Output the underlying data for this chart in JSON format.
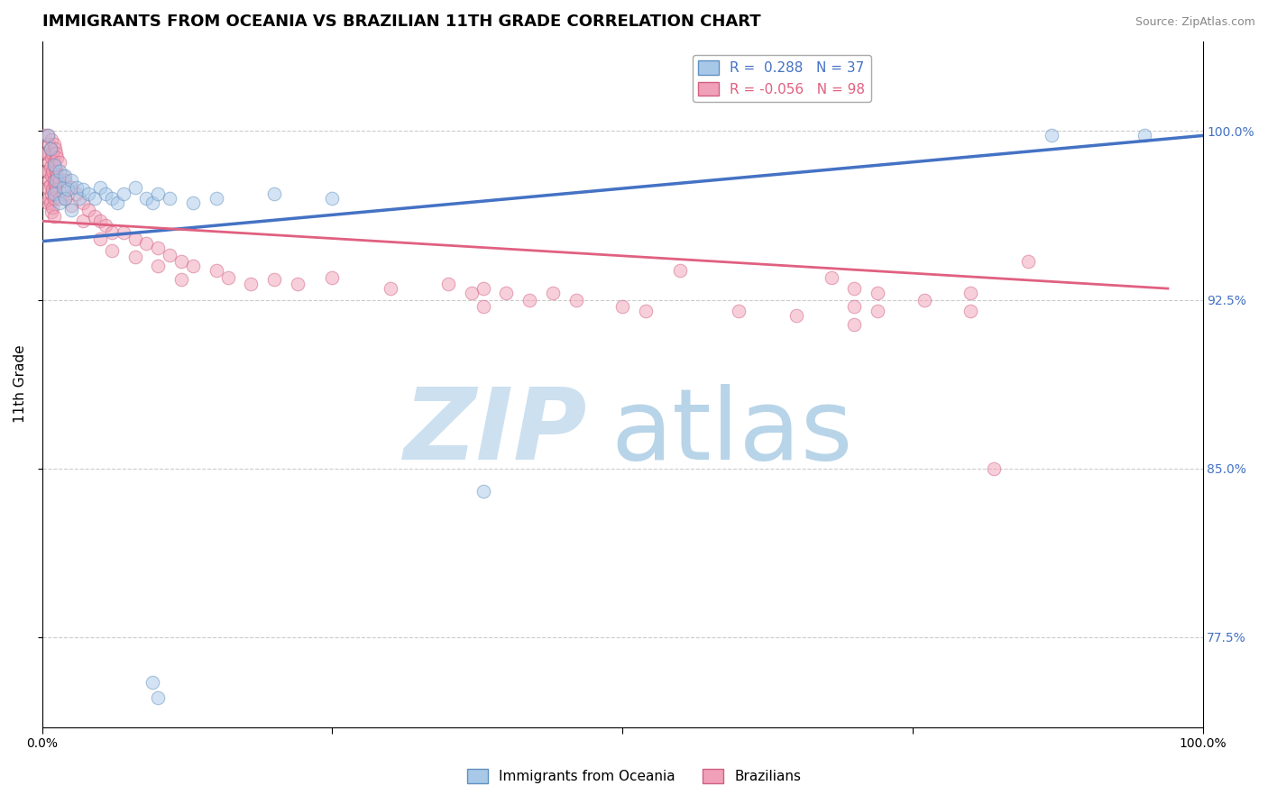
{
  "title": "IMMIGRANTS FROM OCEANIA VS BRAZILIAN 11TH GRADE CORRELATION CHART",
  "source_text": "Source: ZipAtlas.com",
  "ylabel": "11th Grade",
  "xlim": [
    0.0,
    1.0
  ],
  "ylim": [
    0.735,
    1.04
  ],
  "yticks": [
    0.775,
    0.85,
    0.925,
    1.0
  ],
  "ytick_labels": [
    "77.5%",
    "85.0%",
    "92.5%",
    "100.0%"
  ],
  "xticks": [
    0.0,
    0.25,
    0.5,
    0.75,
    1.0
  ],
  "xtick_labels": [
    "0.0%",
    "",
    "",
    "",
    "100.0%"
  ],
  "legend_blue_label": "R =  0.288   N = 37",
  "legend_pink_label": "R = -0.056   N = 98",
  "blue_scatter": {
    "color": "#a8c8e8",
    "edge_color": "#6090c0",
    "points": [
      [
        0.005,
        0.998
      ],
      [
        0.007,
        0.992
      ],
      [
        0.01,
        0.985
      ],
      [
        0.01,
        0.972
      ],
      [
        0.012,
        0.978
      ],
      [
        0.015,
        0.982
      ],
      [
        0.015,
        0.968
      ],
      [
        0.018,
        0.975
      ],
      [
        0.02,
        0.98
      ],
      [
        0.02,
        0.97
      ],
      [
        0.022,
        0.974
      ],
      [
        0.025,
        0.978
      ],
      [
        0.025,
        0.965
      ],
      [
        0.03,
        0.975
      ],
      [
        0.032,
        0.97
      ],
      [
        0.035,
        0.974
      ],
      [
        0.04,
        0.972
      ],
      [
        0.045,
        0.97
      ],
      [
        0.05,
        0.975
      ],
      [
        0.055,
        0.972
      ],
      [
        0.06,
        0.97
      ],
      [
        0.065,
        0.968
      ],
      [
        0.07,
        0.972
      ],
      [
        0.08,
        0.975
      ],
      [
        0.09,
        0.97
      ],
      [
        0.095,
        0.968
      ],
      [
        0.1,
        0.972
      ],
      [
        0.11,
        0.97
      ],
      [
        0.13,
        0.968
      ],
      [
        0.15,
        0.97
      ],
      [
        0.2,
        0.972
      ],
      [
        0.25,
        0.97
      ],
      [
        0.095,
        0.755
      ],
      [
        0.1,
        0.748
      ],
      [
        0.38,
        0.84
      ],
      [
        0.87,
        0.998
      ],
      [
        0.95,
        0.998
      ]
    ]
  },
  "pink_scatter": {
    "color": "#f0a0b8",
    "edge_color": "#d06080",
    "points": [
      [
        0.002,
        0.998
      ],
      [
        0.003,
        0.99
      ],
      [
        0.004,
        0.982
      ],
      [
        0.005,
        0.998
      ],
      [
        0.005,
        0.99
      ],
      [
        0.005,
        0.982
      ],
      [
        0.005,
        0.975
      ],
      [
        0.005,
        0.968
      ],
      [
        0.006,
        0.994
      ],
      [
        0.006,
        0.986
      ],
      [
        0.006,
        0.978
      ],
      [
        0.006,
        0.97
      ],
      [
        0.007,
        0.992
      ],
      [
        0.007,
        0.984
      ],
      [
        0.007,
        0.976
      ],
      [
        0.007,
        0.968
      ],
      [
        0.008,
        0.996
      ],
      [
        0.008,
        0.988
      ],
      [
        0.008,
        0.98
      ],
      [
        0.008,
        0.972
      ],
      [
        0.008,
        0.964
      ],
      [
        0.009,
        0.99
      ],
      [
        0.009,
        0.982
      ],
      [
        0.009,
        0.974
      ],
      [
        0.009,
        0.966
      ],
      [
        0.01,
        0.994
      ],
      [
        0.01,
        0.986
      ],
      [
        0.01,
        0.978
      ],
      [
        0.01,
        0.97
      ],
      [
        0.01,
        0.962
      ],
      [
        0.011,
        0.992
      ],
      [
        0.011,
        0.984
      ],
      [
        0.011,
        0.976
      ],
      [
        0.012,
        0.99
      ],
      [
        0.012,
        0.982
      ],
      [
        0.012,
        0.974
      ],
      [
        0.013,
        0.988
      ],
      [
        0.013,
        0.98
      ],
      [
        0.015,
        0.986
      ],
      [
        0.015,
        0.978
      ],
      [
        0.015,
        0.97
      ],
      [
        0.018,
        0.98
      ],
      [
        0.018,
        0.972
      ],
      [
        0.02,
        0.978
      ],
      [
        0.02,
        0.97
      ],
      [
        0.025,
        0.975
      ],
      [
        0.025,
        0.967
      ],
      [
        0.03,
        0.972
      ],
      [
        0.035,
        0.968
      ],
      [
        0.035,
        0.96
      ],
      [
        0.04,
        0.965
      ],
      [
        0.045,
        0.962
      ],
      [
        0.05,
        0.96
      ],
      [
        0.05,
        0.952
      ],
      [
        0.055,
        0.958
      ],
      [
        0.06,
        0.955
      ],
      [
        0.06,
        0.947
      ],
      [
        0.07,
        0.955
      ],
      [
        0.08,
        0.952
      ],
      [
        0.08,
        0.944
      ],
      [
        0.09,
        0.95
      ],
      [
        0.1,
        0.948
      ],
      [
        0.1,
        0.94
      ],
      [
        0.11,
        0.945
      ],
      [
        0.12,
        0.942
      ],
      [
        0.12,
        0.934
      ],
      [
        0.13,
        0.94
      ],
      [
        0.15,
        0.938
      ],
      [
        0.16,
        0.935
      ],
      [
        0.18,
        0.932
      ],
      [
        0.2,
        0.934
      ],
      [
        0.22,
        0.932
      ],
      [
        0.25,
        0.935
      ],
      [
        0.3,
        0.93
      ],
      [
        0.35,
        0.932
      ],
      [
        0.37,
        0.928
      ],
      [
        0.38,
        0.93
      ],
      [
        0.38,
        0.922
      ],
      [
        0.4,
        0.928
      ],
      [
        0.42,
        0.925
      ],
      [
        0.44,
        0.928
      ],
      [
        0.46,
        0.925
      ],
      [
        0.5,
        0.922
      ],
      [
        0.52,
        0.92
      ],
      [
        0.55,
        0.938
      ],
      [
        0.6,
        0.92
      ],
      [
        0.65,
        0.918
      ],
      [
        0.68,
        0.935
      ],
      [
        0.7,
        0.93
      ],
      [
        0.7,
        0.922
      ],
      [
        0.7,
        0.914
      ],
      [
        0.72,
        0.928
      ],
      [
        0.72,
        0.92
      ],
      [
        0.76,
        0.925
      ],
      [
        0.8,
        0.928
      ],
      [
        0.8,
        0.92
      ],
      [
        0.82,
        0.85
      ],
      [
        0.85,
        0.942
      ]
    ]
  },
  "blue_line": {
    "x_start": 0.0,
    "y_start": 0.951,
    "x_end": 1.0,
    "y_end": 0.998,
    "color": "#4472c4",
    "linewidth": 2.5,
    "linestyle": "solid"
  },
  "pink_line": {
    "x_start": 0.0,
    "y_start": 0.96,
    "x_end": 0.97,
    "y_end": 0.93,
    "color": "#e06080",
    "linewidth": 2.0,
    "linestyle": "solid"
  },
  "grid_color": "#cccccc",
  "watermark_zip": "ZIP",
  "watermark_atlas": "atlas",
  "watermark_color_zip": "#cce0f0",
  "watermark_color_atlas": "#b8d4e8",
  "watermark_fontsize": 80,
  "background_color": "#ffffff",
  "title_fontsize": 13,
  "axis_label_fontsize": 11,
  "tick_fontsize": 10,
  "legend_fontsize": 11,
  "scatter_size": 110,
  "scatter_alpha": 0.5
}
